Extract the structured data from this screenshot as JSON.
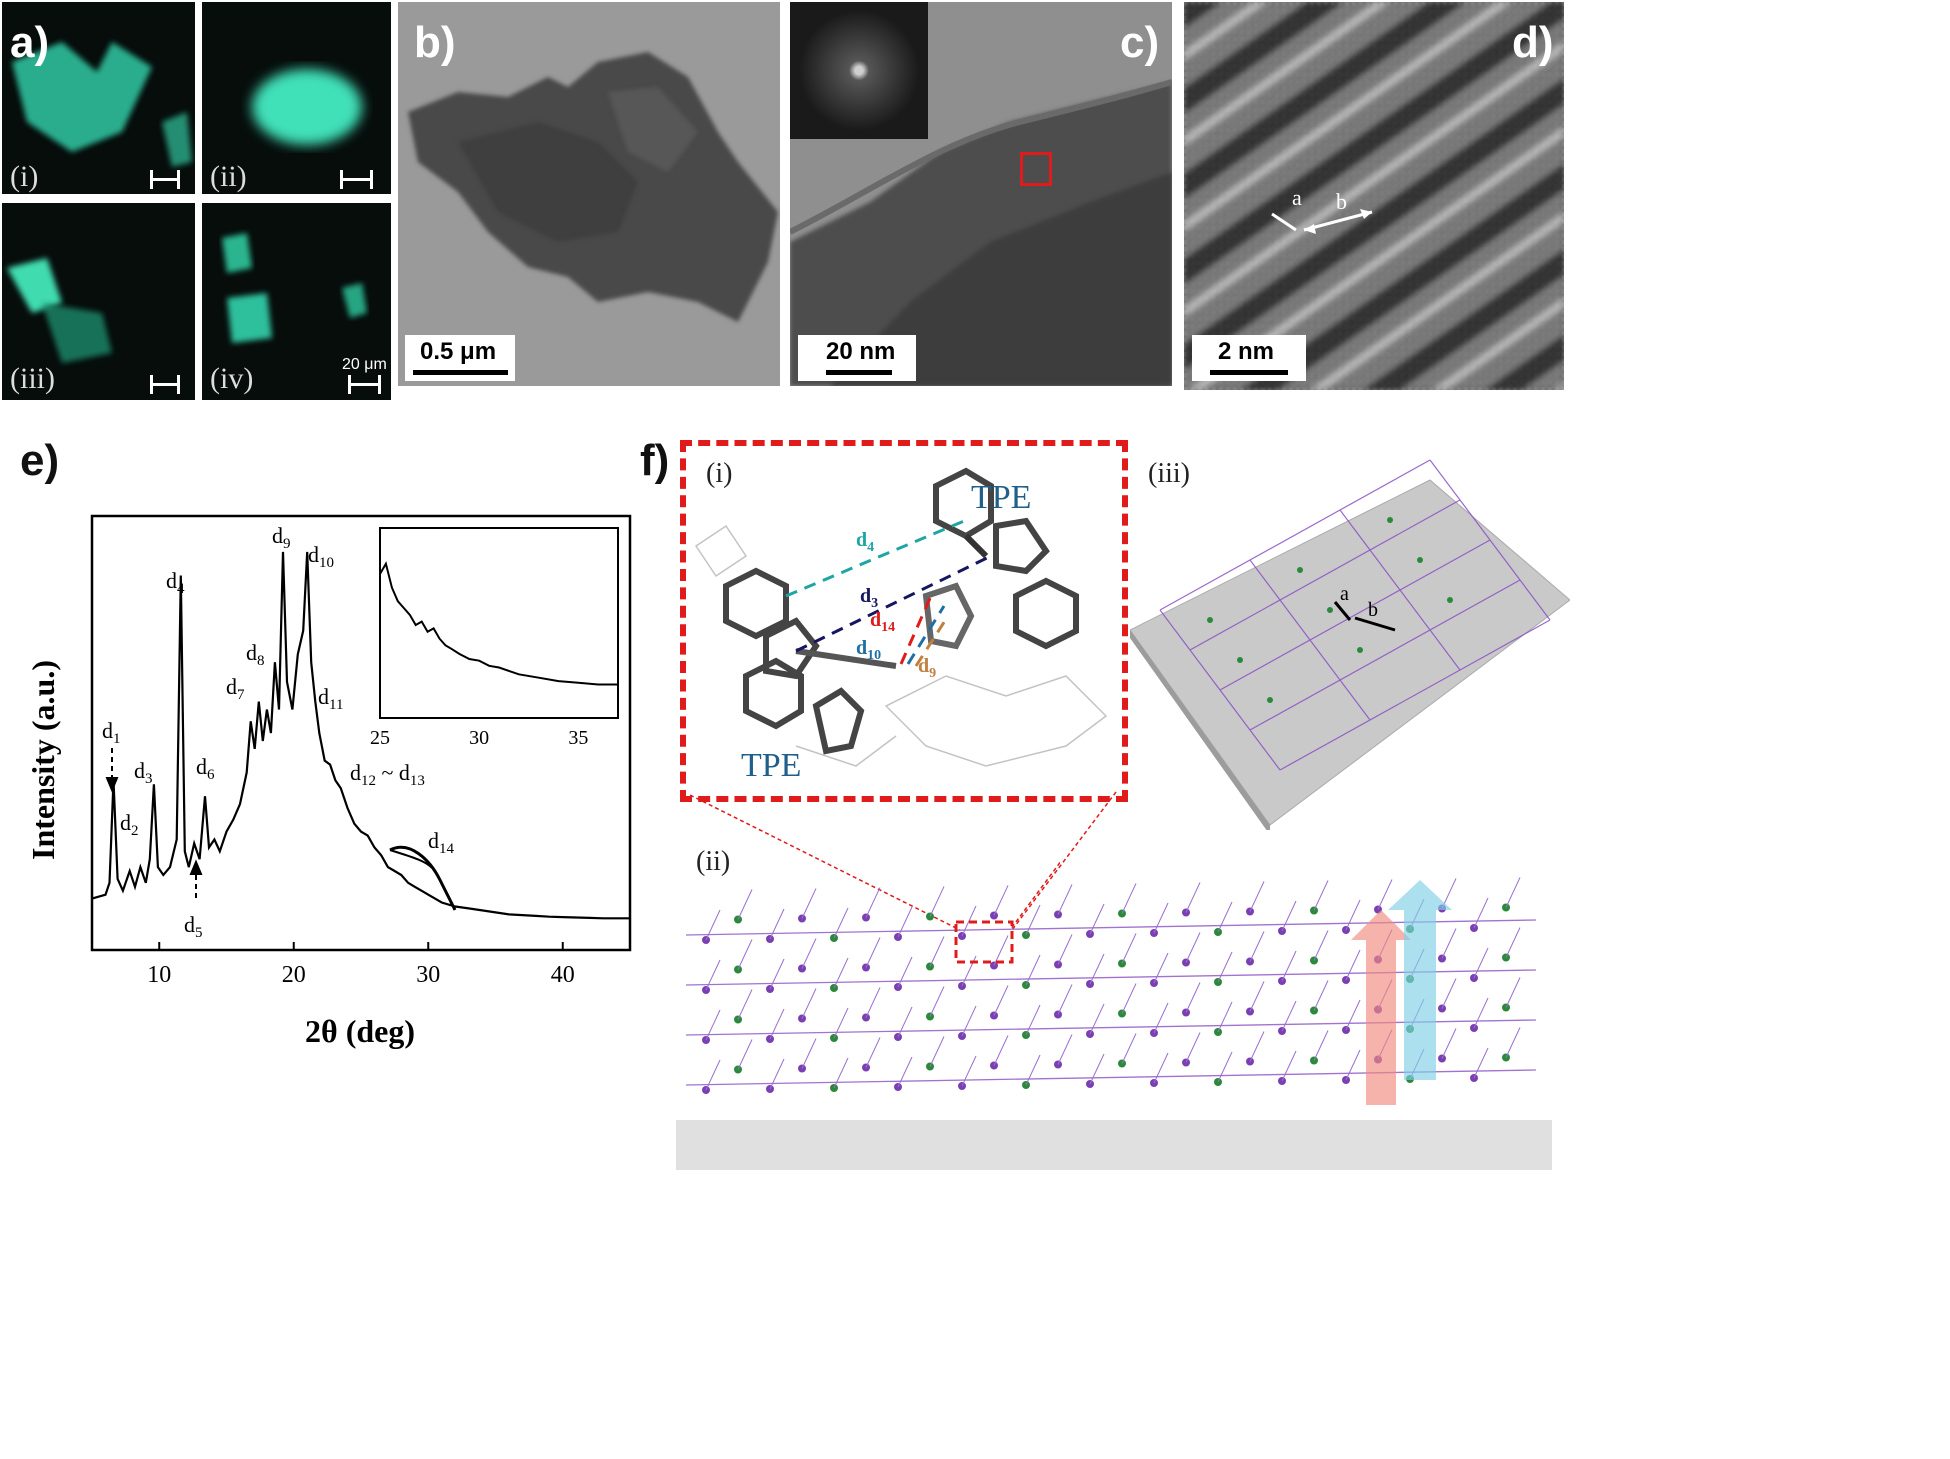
{
  "panels": {
    "a": {
      "letter": "a)",
      "subpanels": [
        "(i)",
        "(ii)",
        "(iii)",
        "(iv)"
      ],
      "scale_label": "20 μm"
    },
    "b": {
      "letter": "b)",
      "scale_label": "0.5 μm"
    },
    "c": {
      "letter": "c)",
      "scale_label": "20 nm"
    },
    "d": {
      "letter": "d)",
      "scale_label": "2 nm",
      "arrow_a": "a",
      "arrow_b": "b"
    },
    "e": {
      "letter": "e)"
    },
    "f": {
      "letter": "f)",
      "sub_i": "(i)",
      "sub_ii": "(ii)",
      "sub_iii": "(iii)",
      "tpe_top": "TPE",
      "tpe_bottom": "TPE",
      "d_labels": {
        "d4": "d4",
        "d3": "d3",
        "d14": "d14",
        "d10": "d10",
        "d9": "d9"
      },
      "arrow_a": "a",
      "arrow_b": "b"
    }
  },
  "colors": {
    "fluorescence": "#3fe0b8",
    "highlight_red": "#e01b1b",
    "tpe_blue": "#1f5f8b",
    "lattice_purple": "#8a4fc4",
    "lattice_green": "#2a8a3a",
    "arrow_red": "#f08a80",
    "arrow_blue": "#7fd0e6"
  },
  "chart_data": {
    "type": "line",
    "xlabel": "2θ (deg)",
    "ylabel": "Intensity (a.u.)",
    "xlim": [
      5,
      45
    ],
    "x_ticks": [
      10,
      20,
      30,
      40
    ],
    "ylim": [
      0,
      1
    ],
    "series": [
      {
        "x": [
          5,
          6,
          6.3,
          6.6,
          6.9,
          7.3,
          7.8,
          8.2,
          8.6,
          9.0,
          9.3,
          9.6,
          9.9,
          10.3,
          10.8,
          11.3,
          11.6,
          11.9,
          12.2,
          12.6,
          13.0,
          13.4,
          13.7,
          14.1,
          14.5,
          15.0,
          15.5,
          16.0,
          16.5,
          16.8,
          17.1,
          17.4,
          17.7,
          18.0,
          18.3,
          18.6,
          18.9,
          19.2,
          19.5,
          19.9,
          20.3,
          20.7,
          21.0,
          21.3,
          21.6,
          21.9,
          22.3,
          22.7,
          23.1,
          23.5,
          24.0,
          24.5,
          25.0,
          25.5,
          26.0,
          26.5,
          27.0,
          27.5,
          28.0,
          28.5,
          29.0,
          29.5,
          30.0,
          30.5,
          31.0,
          32,
          33,
          34,
          35,
          36,
          37,
          38,
          39,
          40,
          41,
          42,
          43,
          44,
          45
        ],
        "y": [
          0.1,
          0.11,
          0.14,
          0.4,
          0.15,
          0.12,
          0.17,
          0.13,
          0.18,
          0.14,
          0.2,
          0.39,
          0.18,
          0.16,
          0.18,
          0.25,
          0.92,
          0.22,
          0.18,
          0.24,
          0.2,
          0.36,
          0.23,
          0.25,
          0.22,
          0.27,
          0.3,
          0.34,
          0.42,
          0.55,
          0.48,
          0.6,
          0.5,
          0.58,
          0.52,
          0.7,
          0.58,
          0.98,
          0.65,
          0.58,
          0.72,
          0.78,
          0.98,
          0.7,
          0.6,
          0.52,
          0.45,
          0.44,
          0.4,
          0.38,
          0.33,
          0.29,
          0.27,
          0.26,
          0.23,
          0.21,
          0.18,
          0.17,
          0.16,
          0.14,
          0.13,
          0.12,
          0.11,
          0.1,
          0.09,
          0.08,
          0.075,
          0.07,
          0.065,
          0.06,
          0.058,
          0.056,
          0.054,
          0.053,
          0.052,
          0.051,
          0.05,
          0.05,
          0.05
        ]
      }
    ],
    "peak_labels": [
      "d1",
      "d2",
      "d3",
      "d4",
      "d5",
      "d6",
      "d7",
      "d8",
      "d9",
      "d10",
      "d11",
      "d12 ~ d13",
      "d14"
    ],
    "inset": {
      "xlim": [
        25,
        37
      ],
      "x_ticks": [
        25,
        30,
        35
      ],
      "x": [
        25,
        25.3,
        25.6,
        25.9,
        26.2,
        26.5,
        26.8,
        27.1,
        27.4,
        27.7,
        28,
        28.3,
        28.6,
        29,
        29.5,
        30,
        30.5,
        31,
        31.5,
        32,
        33,
        34,
        35,
        36,
        37
      ],
      "y": [
        0.8,
        0.86,
        0.72,
        0.64,
        0.6,
        0.56,
        0.5,
        0.52,
        0.46,
        0.48,
        0.42,
        0.38,
        0.36,
        0.33,
        0.3,
        0.29,
        0.26,
        0.25,
        0.23,
        0.21,
        0.19,
        0.17,
        0.16,
        0.15,
        0.15
      ]
    }
  }
}
